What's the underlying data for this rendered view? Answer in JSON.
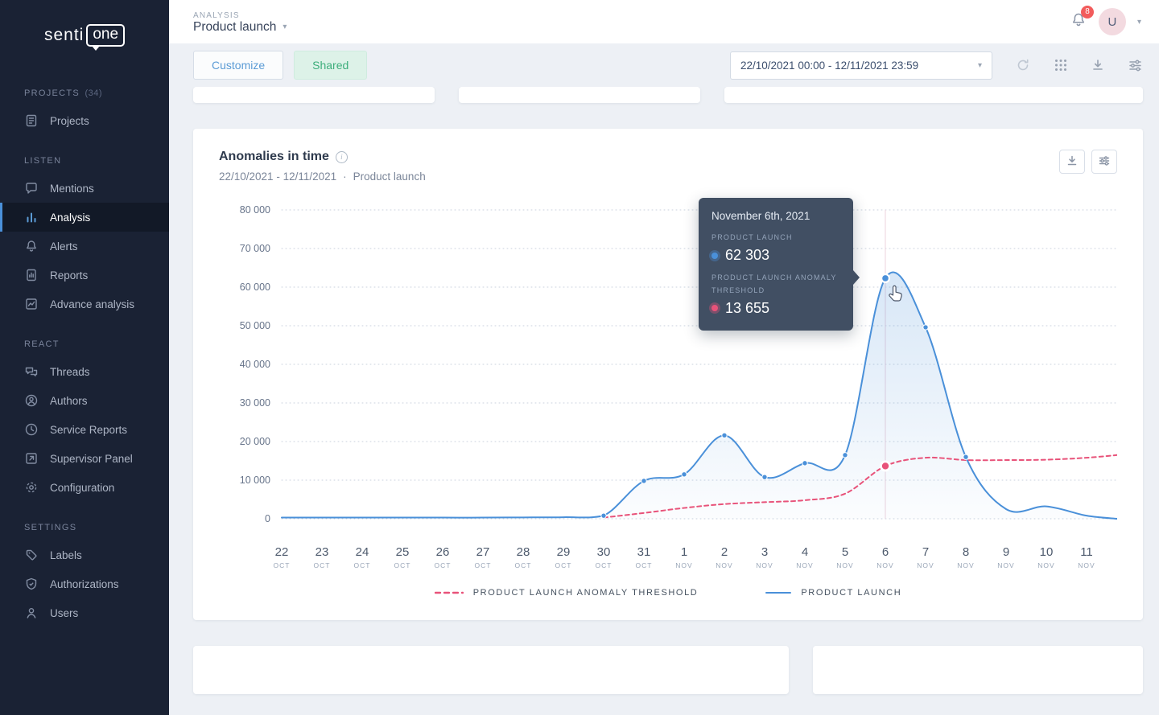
{
  "sidebar": {
    "logo_senti": "senti",
    "logo_one": "one",
    "sections": [
      {
        "header": "Projects",
        "count": "(34)",
        "items": [
          {
            "label": "Projects"
          }
        ]
      },
      {
        "header": "Listen",
        "items": [
          {
            "label": "Mentions"
          },
          {
            "label": "Analysis",
            "active": true
          },
          {
            "label": "Alerts"
          },
          {
            "label": "Reports"
          },
          {
            "label": "Advance analysis"
          }
        ]
      },
      {
        "header": "React",
        "items": [
          {
            "label": "Threads"
          },
          {
            "label": "Authors"
          },
          {
            "label": "Service Reports"
          },
          {
            "label": "Supervisor Panel"
          },
          {
            "label": "Configuration"
          }
        ]
      },
      {
        "header": "Settings",
        "items": [
          {
            "label": "Labels"
          },
          {
            "label": "Authorizations"
          },
          {
            "label": "Users"
          }
        ]
      }
    ]
  },
  "header": {
    "section_label": "Analysis",
    "project_name": "Product launch",
    "notification_count": "8",
    "avatar_initial": "U",
    "icons": [
      "bell-icon",
      "caret-down-icon"
    ]
  },
  "toolbar": {
    "customize": "Customize",
    "shared": "Shared",
    "date_range": "22/10/2021 00:00 - 12/11/2021 23:59",
    "icons": [
      "refresh-icon",
      "grid-icon",
      "download-icon",
      "filters-icon"
    ]
  },
  "anomalies_card": {
    "title": "Anomalies in time",
    "date_range": "22/10/2021 - 12/11/2021",
    "separator": "·",
    "project": "Product launch",
    "action_icons": [
      "download-icon",
      "settings-icon"
    ]
  },
  "tooltip": {
    "date": "November 6th, 2021",
    "series": [
      {
        "label": "Product launch",
        "value": "62 303",
        "color": "#4a90d9"
      },
      {
        "label": "Product launch anomaly threshold",
        "value": "13 655",
        "color": "#e8537a"
      }
    ]
  },
  "legend": [
    {
      "label": "Product launch anomaly threshold",
      "color": "#e8537a",
      "style": "dashed"
    },
    {
      "label": "Product launch",
      "color": "#4a90d9",
      "style": "solid"
    }
  ],
  "chart_data": {
    "type": "line",
    "title": "Anomalies in time",
    "date_range": "22/10/2021 - 12/11/2021",
    "grid": "dotted",
    "legend_position": "bottom",
    "ylim": [
      0,
      80000
    ],
    "y_ticks": [
      {
        "value": 0,
        "label": "0"
      },
      {
        "value": 10000,
        "label": "10 000"
      },
      {
        "value": 20000,
        "label": "20 000"
      },
      {
        "value": 30000,
        "label": "30 000"
      },
      {
        "value": 40000,
        "label": "40 000"
      },
      {
        "value": 50000,
        "label": "50 000"
      },
      {
        "value": 60000,
        "label": "60 000"
      },
      {
        "value": 70000,
        "label": "70 000"
      },
      {
        "value": 80000,
        "label": "80 000"
      }
    ],
    "x": [
      {
        "day": "22",
        "month": "OCT"
      },
      {
        "day": "23",
        "month": "OCT"
      },
      {
        "day": "24",
        "month": "OCT"
      },
      {
        "day": "25",
        "month": "OCT"
      },
      {
        "day": "26",
        "month": "OCT"
      },
      {
        "day": "27",
        "month": "OCT"
      },
      {
        "day": "28",
        "month": "OCT"
      },
      {
        "day": "29",
        "month": "OCT"
      },
      {
        "day": "30",
        "month": "OCT"
      },
      {
        "day": "31",
        "month": "OCT"
      },
      {
        "day": "1",
        "month": "NOV"
      },
      {
        "day": "2",
        "month": "NOV"
      },
      {
        "day": "3",
        "month": "NOV"
      },
      {
        "day": "4",
        "month": "NOV"
      },
      {
        "day": "5",
        "month": "NOV"
      },
      {
        "day": "6",
        "month": "NOV"
      },
      {
        "day": "7",
        "month": "NOV"
      },
      {
        "day": "8",
        "month": "NOV"
      },
      {
        "day": "9",
        "month": "NOV"
      },
      {
        "day": "10",
        "month": "NOV"
      },
      {
        "day": "11",
        "month": "NOV"
      }
    ],
    "series": [
      {
        "name": "Product launch",
        "color": "#4a90d9",
        "line_style": "solid",
        "values": [
          300,
          300,
          300,
          300,
          300,
          300,
          350,
          400,
          800,
          9800,
          11500,
          21600,
          10800,
          14400,
          16500,
          62303,
          49600,
          16000,
          2500,
          3200,
          800
        ]
      },
      {
        "name": "Product launch anomaly threshold",
        "color": "#e8537a",
        "line_style": "dashed",
        "values": [
          null,
          null,
          null,
          null,
          null,
          null,
          null,
          null,
          300,
          1500,
          2800,
          3800,
          4300,
          4800,
          6500,
          13655,
          15800,
          15200,
          15200,
          15300,
          15800
        ]
      }
    ],
    "edge_extension": [
      0,
      16500
    ],
    "marker_indices": [
      8,
      9,
      10,
      11,
      12,
      13,
      14,
      16,
      17
    ],
    "highlight_index": 15,
    "highlight": {
      "date": "November 6th, 2021",
      "values": [
        62303,
        13655
      ]
    }
  }
}
